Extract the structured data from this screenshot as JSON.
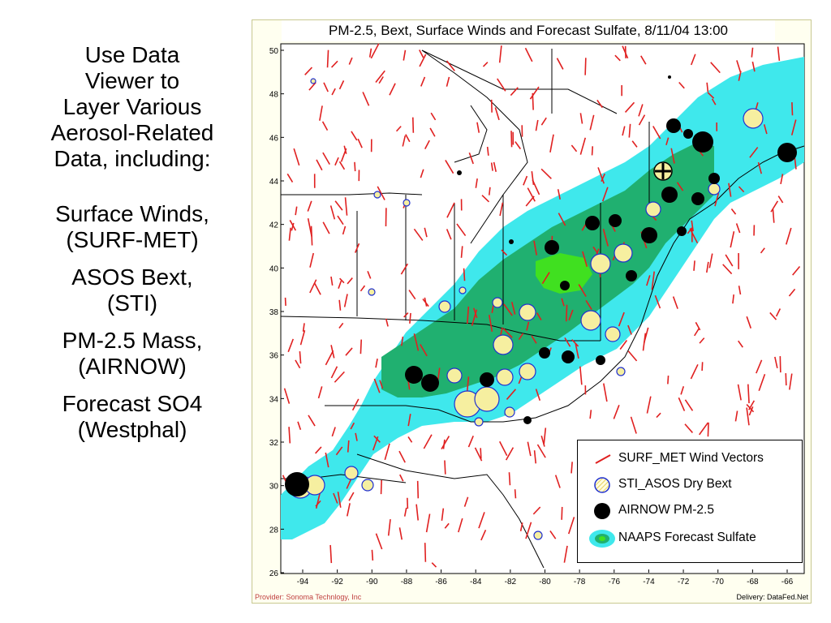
{
  "sidebar": {
    "intro_lines": [
      "Use Data",
      "Viewer to",
      "Layer Various",
      "Aerosol-Related",
      "Data, including:"
    ],
    "items": [
      [
        "Surface Winds,",
        "(SURF-MET)"
      ],
      [
        "ASOS Bext,",
        "(STI)"
      ],
      [
        "PM-2.5 Mass,",
        "(AIRNOW)"
      ],
      [
        "Forecast SO4",
        "(Westphal)"
      ]
    ]
  },
  "map": {
    "title": "PM-2.5, Bext, Surface Winds and Forecast Sulfate, 8/11/04 13:00",
    "lat_ticks": [
      "50",
      "48",
      "46",
      "44",
      "42",
      "40",
      "38",
      "36",
      "34",
      "32",
      "30",
      "28",
      "26"
    ],
    "lon_ticks": [
      "-94",
      "-92",
      "-90",
      "-88",
      "-86",
      "-84",
      "-82",
      "-80",
      "-78",
      "-76",
      "-74",
      "-72",
      "-70",
      "-68",
      "-66"
    ],
    "legend": {
      "wind": "SURF_MET Wind Vectors",
      "bext": "STI_ASOS Dry Bext",
      "pm25": "AIRNOW PM-2.5",
      "sulfate": "NAAPS Forecast Sulfate"
    },
    "footer_left": "Provider: Sonoma Technlogy, Inc",
    "footer_right": "Delivery: DataFed.Net",
    "colors": {
      "sulfate_low": "#3fe8ec",
      "sulfate_mid": "#20b070",
      "sulfate_high": "#40e020",
      "wind": "#e02020",
      "bext_fill": "#f6efa0",
      "bext_edge": "#2030d0",
      "pm25": "#000000",
      "boundary": "#000000"
    }
  }
}
